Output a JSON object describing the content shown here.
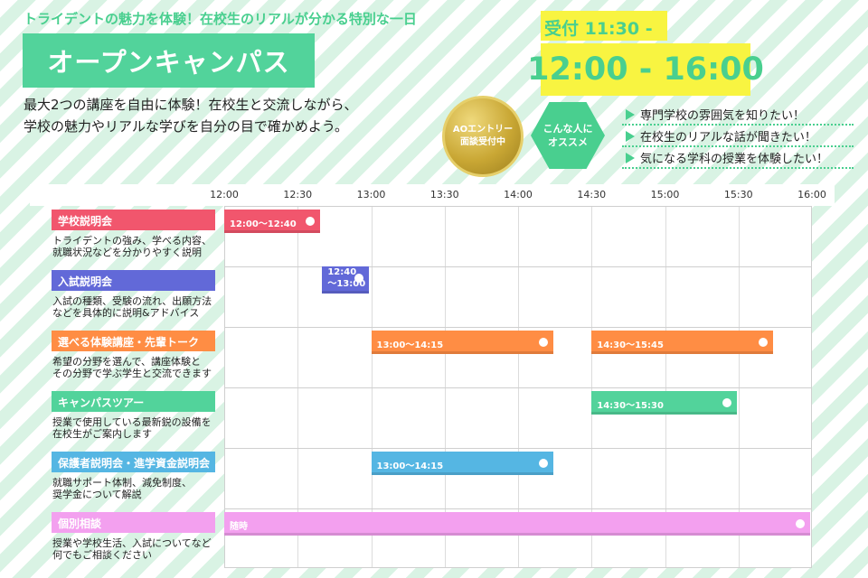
{
  "header": {
    "tagline": "トライデントの魅力を体験！在校生のリアルが分かる特別な一日",
    "title": "オープンキャンパス",
    "intro_line1": "最大2つの講座を自由に体験！在校生と交流しながら、",
    "intro_line2": "学校の魅力やリアルな学びを自分の目で確かめよう。",
    "reception": "受付 11:30 -",
    "time_main": "12:00 - 16:00"
  },
  "badges": {
    "ao_line1": "AOエントリー",
    "ao_line2": "面談受付中",
    "hex_line1": "こんな人に",
    "hex_line2": "オススメ",
    "icon_color": "#49cf8f"
  },
  "recommend": {
    "items": [
      {
        "text": "専門学校の雰囲気を知りたい！",
        "icon": "triangle-right-icon"
      },
      {
        "text": "在校生のリアルな話が聞きたい！",
        "icon": "triangle-right-icon"
      },
      {
        "text": "気になる学科の授業を体験したい！",
        "icon": "triangle-right-icon"
      }
    ]
  },
  "timeline": {
    "ticks": [
      "12:00",
      "12:30",
      "13:00",
      "13:30",
      "14:00",
      "14:30",
      "15:00",
      "15:30",
      "16:00"
    ]
  },
  "categories": [
    {
      "label": "学校説明会",
      "color": "#f1566d",
      "desc_line1": "トライデントの強み、学べる内容、",
      "desc_line2": "就職状況などを分かりやすく説明"
    },
    {
      "label": "入試説明会",
      "color": "#6269d8",
      "desc_line1": "入試の種類、受験の流れ、出願方法",
      "desc_line2": "などを具体的に説明&アドバイス"
    },
    {
      "label": "選べる体験講座・先輩トーク",
      "color": "#ff8d44",
      "desc_line1": "希望の分野を選んで、講座体験と",
      "desc_line2": "その分野で学ぶ学生と交流できます"
    },
    {
      "label": "キャンパスツアー",
      "color": "#52d39b",
      "desc_line1": "授業で使用している最新鋭の設備を",
      "desc_line2": "在校生がご案内します"
    },
    {
      "label": "保護者説明会・進学資金説明会",
      "color": "#55b6e3",
      "desc_line1": "就職サポート体制、減免制度、",
      "desc_line2": "奨学金について解説"
    },
    {
      "label": "個別相談",
      "color": "#f3a0ef",
      "desc_line1": "授業や学校生活、入試についてなど",
      "desc_line2": "何でもご相談ください"
    }
  ],
  "sessions": [
    {
      "row": 0,
      "start": "12:00",
      "end": "12:40",
      "label": "12:00〜12:40",
      "color": "#f1566d"
    },
    {
      "row": 1,
      "start": "12:40",
      "end": "13:00",
      "label_line1": "12:40",
      "label_line2": "〜13:00",
      "color": "#6269d8"
    },
    {
      "row": 2,
      "start": "13:00",
      "end": "14:15",
      "label": "13:00〜14:15",
      "color": "#ff8d44"
    },
    {
      "row": 2,
      "start": "14:30",
      "end": "15:45",
      "label": "14:30〜15:45",
      "color": "#ff8d44"
    },
    {
      "row": 3,
      "start": "14:30",
      "end": "15:30",
      "label": "14:30〜15:30",
      "color": "#52d39b"
    },
    {
      "row": 4,
      "start": "13:00",
      "end": "14:15",
      "label": "13:00〜14:15",
      "color": "#55b6e3"
    },
    {
      "row": 5,
      "start": "12:00",
      "end": "16:00",
      "label": "随時",
      "color": "#f3a0ef"
    }
  ]
}
